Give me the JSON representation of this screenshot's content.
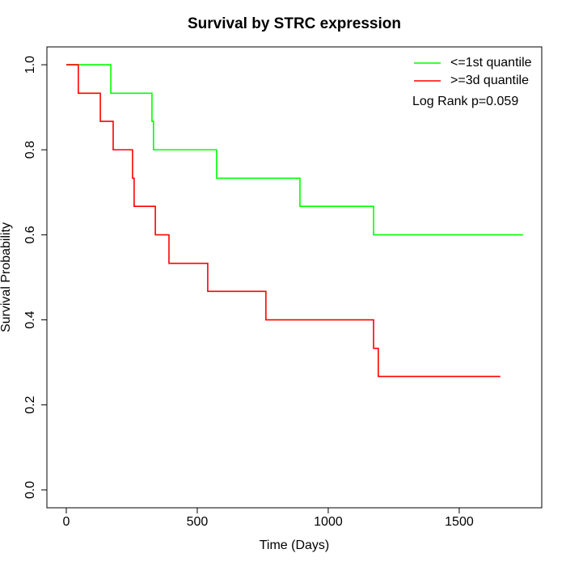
{
  "chart_data": {
    "type": "step",
    "title": "Survival by STRC expression",
    "xlabel": "Time (Days)",
    "ylabel": "Survival Probability",
    "annotation": "Log Rank p=0.059",
    "xlim": [
      -74,
      1815
    ],
    "ylim": [
      -0.042,
      1.042
    ],
    "xticks": [
      0,
      500,
      1000,
      1500
    ],
    "yticks": [
      {
        "value": 0,
        "label": "0.0"
      },
      0.2,
      0.4,
      0.6,
      0.8,
      {
        "value": 1,
        "label": "1.0"
      }
    ],
    "legend": "top-right",
    "series": [
      {
        "name": "<=1st quantile",
        "color": "#00ff00",
        "x": [
          0,
          170,
          327,
          333,
          574,
          892,
          1173,
          1744
        ],
        "values": [
          1,
          0.933,
          0.867,
          0.8,
          0.733,
          0.667,
          0.6,
          0.6
        ]
      },
      {
        "name": ">=3d quantile",
        "color": "#ff0000",
        "x": [
          0,
          46,
          130,
          179,
          253,
          259,
          340,
          392,
          540,
          762,
          1173,
          1191,
          1657
        ],
        "values": [
          1,
          0.933,
          0.867,
          0.8,
          0.733,
          0.667,
          0.6,
          0.533,
          0.467,
          0.4,
          0.333,
          0.267,
          0.267
        ]
      }
    ]
  }
}
